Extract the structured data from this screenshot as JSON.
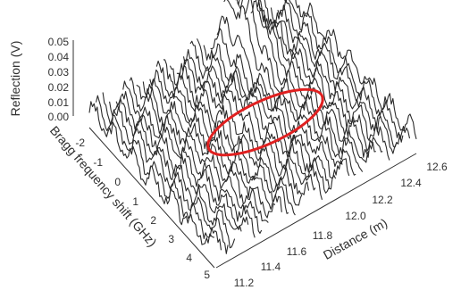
{
  "chart_data": {
    "type": "surface-3d-waterfall",
    "zlabel": "Reflection (V)",
    "ylabel": "Bragg frequency shift (GHz)",
    "xlabel": "Distance (m)",
    "z_ticks": [
      "0.05",
      "0.04",
      "0.03",
      "0.02",
      "0.01",
      "0.00"
    ],
    "y_ticks": [
      "-2",
      "-1",
      "0",
      "1",
      "2",
      "3",
      "4",
      "5"
    ],
    "x_ticks": [
      "11.2",
      "11.4",
      "11.6",
      "11.8",
      "12.0",
      "12.2",
      "12.4",
      "12.6"
    ],
    "zlim": [
      0,
      0.05
    ],
    "ylim": [
      -2,
      5
    ],
    "xlim": [
      11.2,
      12.6
    ],
    "trace_count": 31,
    "features": [
      {
        "distance": 12.2,
        "frequency_shift": -1.2,
        "peak_reflection": 0.048
      },
      {
        "distance": 11.9,
        "frequency_shift": 0.8,
        "peak_reflection": 0.02
      }
    ],
    "annotation": {
      "shape": "ellipse",
      "color": "#e02020"
    },
    "colors": {
      "trace": "#2b2b2b",
      "axis": "#303030"
    }
  }
}
